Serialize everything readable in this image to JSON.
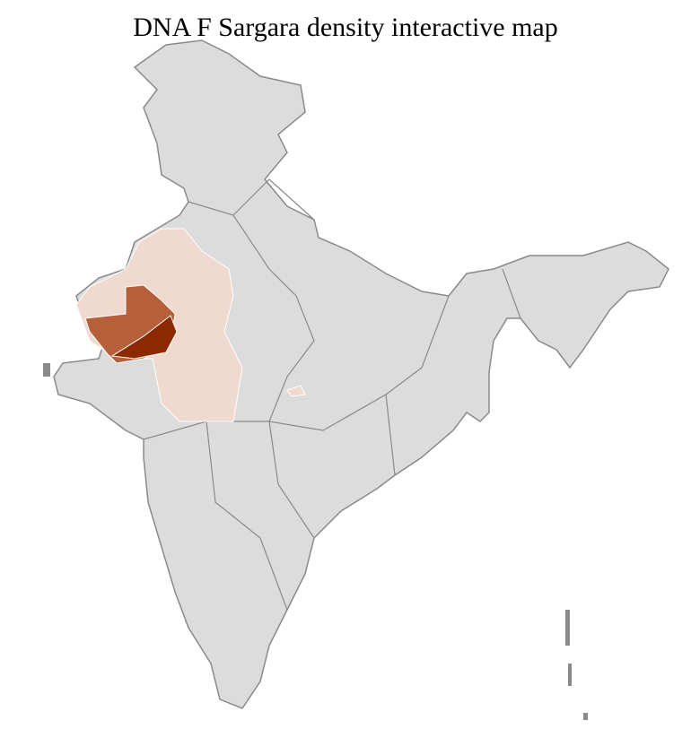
{
  "title": "DNA F Sargara density interactive map",
  "colors": {
    "base": "#dcdcdc",
    "border": "#8a8a8a",
    "district_line": "#ffffff",
    "low": "#f0d9cf",
    "medium": "#b5603a",
    "high": "#8b2a00"
  }
}
